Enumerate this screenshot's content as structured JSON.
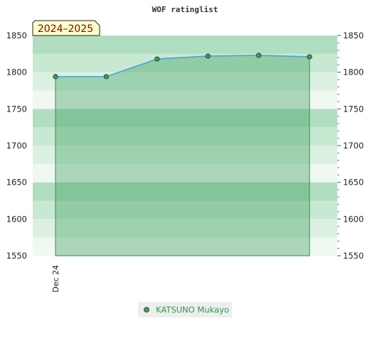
{
  "chart_data": {
    "type": "area",
    "title": "WOF ratinglist",
    "season_label": "2024–2025",
    "x": [
      0,
      1,
      2,
      3,
      4,
      5
    ],
    "x_tick_labels": [
      {
        "x": 0,
        "label": "Dec 24"
      }
    ],
    "series": [
      {
        "name": "KATSUNO Mukayo",
        "values": [
          1794,
          1794,
          1818,
          1822,
          1823,
          1821
        ]
      }
    ],
    "ylim": [
      1550,
      1850
    ],
    "y_ticks": [
      1550,
      1600,
      1650,
      1700,
      1750,
      1800,
      1850
    ],
    "grid": true,
    "legend": "bottom-center",
    "colors": {
      "line": "#4aa3d8",
      "fill": "#3a9d5c",
      "marker": "#3c9a5a",
      "season_bg": "#ffffcc",
      "season_text": "#8b0000",
      "legend_text": "#2e9a4a"
    }
  }
}
